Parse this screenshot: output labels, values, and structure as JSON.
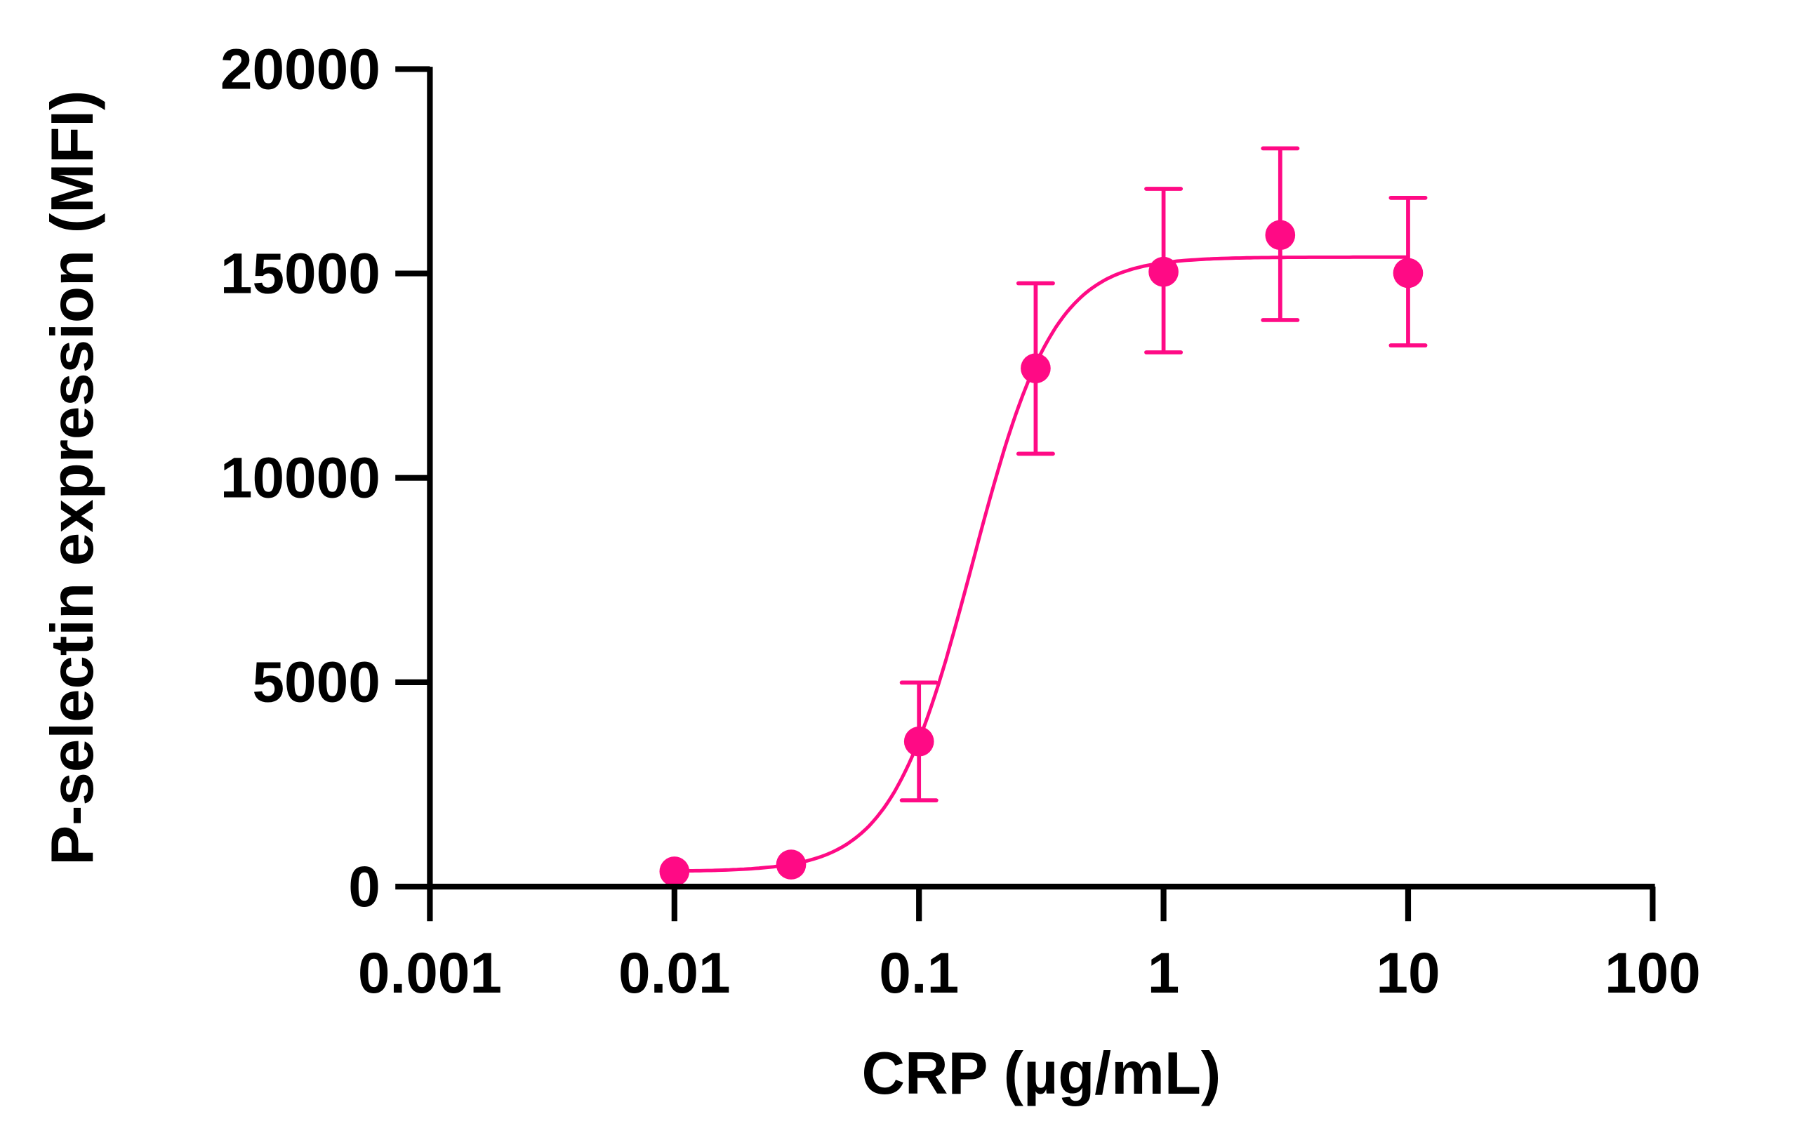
{
  "chart_data": {
    "type": "scatter",
    "xlabel": "CRP (µg/mL)",
    "ylabel": "P-selectin expression (MFI)",
    "xscale": "log",
    "xlim": [
      0.001,
      100
    ],
    "ylim": [
      0,
      20000
    ],
    "xticks": [
      0.001,
      0.01,
      0.1,
      1,
      10,
      100
    ],
    "xtick_labels": [
      "0.001",
      "0.01",
      "0.1",
      "1",
      "10",
      "100"
    ],
    "yticks": [
      0,
      5000,
      10000,
      15000,
      20000
    ],
    "ytick_labels": [
      "0",
      "5000",
      "10000",
      "15000",
      "20000"
    ],
    "grid": false,
    "color": "#FF0A85",
    "series": [
      {
        "x": [
          0.01,
          0.03,
          0.1,
          0.3,
          1,
          3,
          10
        ],
        "y": [
          370,
          540,
          3550,
          12680,
          15040,
          15940,
          15010
        ],
        "err_upper": [
          null,
          null,
          4990,
          14760,
          17070,
          18060,
          16850
        ],
        "err_lower": [
          null,
          null,
          2110,
          10590,
          13070,
          13860,
          13240
        ]
      }
    ],
    "fit": {
      "type": "four-parameter logistic",
      "bottom": 370,
      "top": 15400,
      "ec50": 0.165,
      "hill": 2.6
    }
  }
}
